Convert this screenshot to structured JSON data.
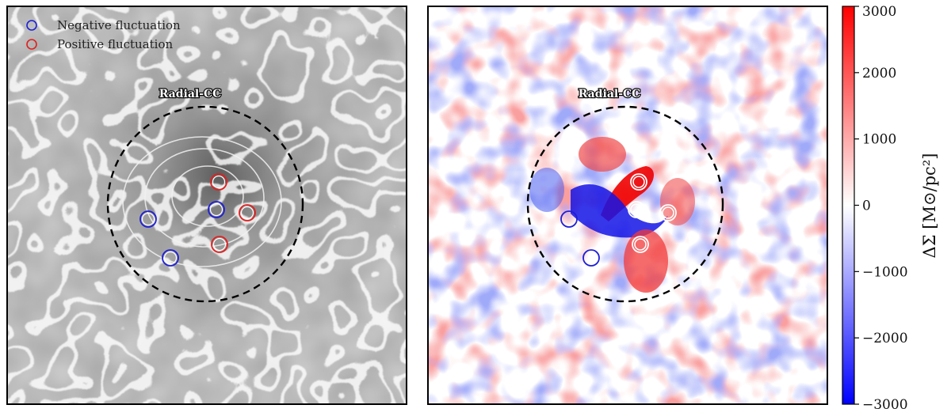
{
  "chart_data": [
    {
      "type": "heatmap",
      "panel": "left",
      "colormap": "grayscale",
      "contours": "white",
      "legend": {
        "placement": "top-left",
        "entries": [
          {
            "label": "Negative fluctuation",
            "color": "#1f1fd6"
          },
          {
            "label": "Positive fluctuation",
            "color": "#e02020"
          }
        ]
      },
      "annotation": {
        "text": "Radial-CC",
        "shape": "dashed-circle"
      },
      "markers": [
        {
          "kind": "positive",
          "color": "#e02020"
        },
        {
          "kind": "positive",
          "color": "#e02020"
        },
        {
          "kind": "positive",
          "color": "#e02020"
        },
        {
          "kind": "negative",
          "color": "#1f1fd6"
        },
        {
          "kind": "negative",
          "color": "#1f1fd6"
        },
        {
          "kind": "negative",
          "color": "#1f1fd6"
        }
      ]
    },
    {
      "type": "heatmap",
      "panel": "right",
      "colormap": "bwr",
      "annotation": {
        "text": "Radial-CC",
        "shape": "dashed-circle"
      },
      "colorbar": {
        "label": "ΔΣ [M⊙/pc²]",
        "range": [
          -3000,
          3000
        ],
        "ticks": [
          {
            "value": 3000,
            "label": "3000"
          },
          {
            "value": 2000,
            "label": "2000"
          },
          {
            "value": 1000,
            "label": "1000"
          },
          {
            "value": 0,
            "label": "0"
          },
          {
            "value": -1000,
            "label": "−1000"
          },
          {
            "value": -2000,
            "label": "−2000"
          },
          {
            "value": -3000,
            "label": "−3000"
          }
        ]
      },
      "markers": [
        {
          "kind": "positive",
          "color": "#e02020"
        },
        {
          "kind": "positive",
          "color": "#e02020"
        },
        {
          "kind": "positive",
          "color": "#e02020"
        },
        {
          "kind": "negative",
          "color": "#1f1fd6"
        },
        {
          "kind": "negative",
          "color": "#1f1fd6"
        },
        {
          "kind": "negative",
          "color": "#1f1fd6"
        }
      ]
    }
  ]
}
